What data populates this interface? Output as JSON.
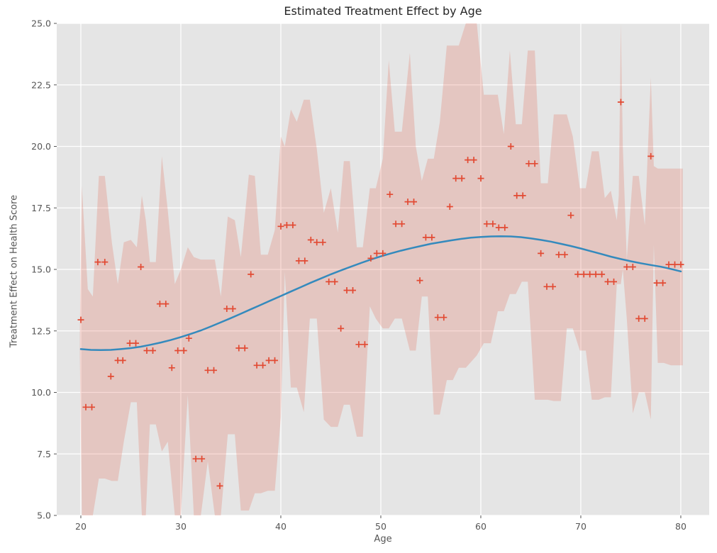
{
  "figure": {
    "background": "#ffffff",
    "plot_background": "#e5e5e5",
    "gridline_color": "#ffffff",
    "tick_color": "#555555",
    "title_color": "#262626"
  },
  "chart_data": {
    "type": "scatter",
    "title": "Estimated Treatment Effect by Age",
    "xlabel": "Age",
    "ylabel": "Treatment Effect on Health Score",
    "xlim": [
      17.59,
      82.84
    ],
    "ylim": [
      5.0,
      25.0
    ],
    "x_ticks": [
      "20",
      "30",
      "40",
      "50",
      "60",
      "70",
      "80"
    ],
    "x_tick_values": [
      20,
      30,
      40,
      50,
      60,
      70,
      80
    ],
    "y_ticks": [
      "5.0",
      "7.5",
      "10.0",
      "12.5",
      "15.0",
      "17.5",
      "20.0",
      "22.5",
      "25.0"
    ],
    "y_tick_values": [
      5.0,
      7.5,
      10.0,
      12.5,
      15.0,
      17.5,
      20.0,
      22.5,
      25.0
    ],
    "grid": true,
    "legend": false,
    "series": [
      {
        "name": "observed-treatment-effects",
        "type": "scatter",
        "marker": "plus",
        "color": "#E24A33",
        "points": [
          [
            20.0,
            12.95
          ],
          [
            20.5,
            9.4
          ],
          [
            21.1,
            9.4
          ],
          [
            21.7,
            15.3
          ],
          [
            22.4,
            15.3
          ],
          [
            23.0,
            10.65
          ],
          [
            23.7,
            11.3
          ],
          [
            24.2,
            11.3
          ],
          [
            24.9,
            12.0
          ],
          [
            25.5,
            12.0
          ],
          [
            26.0,
            15.1
          ],
          [
            26.6,
            11.7
          ],
          [
            27.2,
            11.7
          ],
          [
            27.9,
            13.6
          ],
          [
            28.5,
            13.6
          ],
          [
            29.1,
            11.0
          ],
          [
            29.7,
            11.7
          ],
          [
            30.3,
            11.7
          ],
          [
            30.8,
            12.2
          ],
          [
            31.5,
            7.3
          ],
          [
            32.1,
            7.3
          ],
          [
            32.7,
            10.9
          ],
          [
            33.3,
            10.9
          ],
          [
            33.9,
            6.2
          ],
          [
            34.6,
            13.4
          ],
          [
            35.2,
            13.4
          ],
          [
            35.8,
            11.8
          ],
          [
            36.4,
            11.8
          ],
          [
            37.0,
            14.8
          ],
          [
            37.6,
            11.1
          ],
          [
            38.2,
            11.1
          ],
          [
            38.8,
            11.3
          ],
          [
            39.4,
            11.3
          ],
          [
            40.0,
            16.75
          ],
          [
            40.6,
            16.8
          ],
          [
            41.2,
            16.8
          ],
          [
            41.8,
            15.35
          ],
          [
            42.4,
            15.35
          ],
          [
            43.0,
            16.2
          ],
          [
            43.6,
            16.1
          ],
          [
            44.2,
            16.1
          ],
          [
            44.8,
            14.5
          ],
          [
            45.4,
            14.5
          ],
          [
            46.0,
            12.6
          ],
          [
            46.6,
            14.15
          ],
          [
            47.2,
            14.15
          ],
          [
            47.8,
            11.95
          ],
          [
            48.4,
            11.95
          ],
          [
            49.0,
            15.45
          ],
          [
            49.6,
            15.65
          ],
          [
            50.2,
            15.65
          ],
          [
            50.9,
            18.05
          ],
          [
            51.5,
            16.85
          ],
          [
            52.1,
            16.85
          ],
          [
            52.7,
            17.75
          ],
          [
            53.3,
            17.75
          ],
          [
            53.9,
            14.55
          ],
          [
            54.5,
            16.3
          ],
          [
            55.1,
            16.3
          ],
          [
            55.7,
            13.05
          ],
          [
            56.3,
            13.05
          ],
          [
            56.9,
            17.55
          ],
          [
            57.5,
            18.7
          ],
          [
            58.1,
            18.7
          ],
          [
            58.7,
            19.45
          ],
          [
            59.3,
            19.45
          ],
          [
            60.0,
            18.7
          ],
          [
            60.6,
            16.85
          ],
          [
            61.2,
            16.85
          ],
          [
            61.8,
            16.7
          ],
          [
            62.4,
            16.7
          ],
          [
            63.0,
            20.0
          ],
          [
            63.6,
            18.0
          ],
          [
            64.2,
            18.0
          ],
          [
            64.8,
            19.3
          ],
          [
            65.4,
            19.3
          ],
          [
            66.0,
            15.65
          ],
          [
            66.6,
            14.3
          ],
          [
            67.2,
            14.3
          ],
          [
            67.8,
            15.6
          ],
          [
            68.4,
            15.6
          ],
          [
            69.0,
            17.2
          ],
          [
            69.7,
            14.8
          ],
          [
            70.3,
            14.8
          ],
          [
            70.9,
            14.8
          ],
          [
            71.5,
            14.8
          ],
          [
            72.1,
            14.8
          ],
          [
            72.7,
            14.5
          ],
          [
            73.3,
            14.5
          ],
          [
            74.0,
            21.8
          ],
          [
            74.6,
            15.1
          ],
          [
            75.2,
            15.1
          ],
          [
            75.8,
            13.0
          ],
          [
            76.4,
            13.0
          ],
          [
            77.0,
            19.6
          ],
          [
            77.6,
            14.45
          ],
          [
            78.2,
            14.45
          ],
          [
            78.8,
            15.2
          ],
          [
            79.4,
            15.2
          ],
          [
            80.0,
            15.2
          ]
        ]
      },
      {
        "name": "smoothed-trend",
        "type": "line",
        "color": "#348ABD",
        "width": 2.5,
        "points": [
          [
            20,
            11.76
          ],
          [
            21,
            11.73
          ],
          [
            22,
            11.72
          ],
          [
            23,
            11.73
          ],
          [
            24,
            11.76
          ],
          [
            25,
            11.8
          ],
          [
            26,
            11.86
          ],
          [
            27,
            11.94
          ],
          [
            28,
            12.03
          ],
          [
            29,
            12.13
          ],
          [
            30,
            12.25
          ],
          [
            31,
            12.38
          ],
          [
            32,
            12.52
          ],
          [
            33,
            12.68
          ],
          [
            34,
            12.85
          ],
          [
            35,
            13.02
          ],
          [
            36,
            13.2
          ],
          [
            37,
            13.38
          ],
          [
            38,
            13.56
          ],
          [
            39,
            13.74
          ],
          [
            40,
            13.92
          ],
          [
            41,
            14.1
          ],
          [
            42,
            14.28
          ],
          [
            43,
            14.46
          ],
          [
            44,
            14.63
          ],
          [
            45,
            14.8
          ],
          [
            46,
            14.96
          ],
          [
            47,
            15.11
          ],
          [
            48,
            15.26
          ],
          [
            49,
            15.4
          ],
          [
            50,
            15.53
          ],
          [
            51,
            15.65
          ],
          [
            52,
            15.76
          ],
          [
            53,
            15.86
          ],
          [
            54,
            15.95
          ],
          [
            55,
            16.04
          ],
          [
            56,
            16.11
          ],
          [
            57,
            16.18
          ],
          [
            58,
            16.24
          ],
          [
            59,
            16.29
          ],
          [
            60,
            16.32
          ],
          [
            61,
            16.34
          ],
          [
            62,
            16.35
          ],
          [
            63,
            16.34
          ],
          [
            64,
            16.31
          ],
          [
            65,
            16.26
          ],
          [
            66,
            16.2
          ],
          [
            67,
            16.13
          ],
          [
            68,
            16.04
          ],
          [
            69,
            15.95
          ],
          [
            70,
            15.85
          ],
          [
            71,
            15.74
          ],
          [
            72,
            15.63
          ],
          [
            73,
            15.52
          ],
          [
            74,
            15.42
          ],
          [
            75,
            15.33
          ],
          [
            76,
            15.25
          ],
          [
            77,
            15.18
          ],
          [
            78,
            15.11
          ],
          [
            79,
            15.02
          ],
          [
            80,
            14.92
          ]
        ]
      },
      {
        "name": "confidence-band",
        "type": "band",
        "color": "#E24A33",
        "opacity": 0.2,
        "points": [
          [
            19.9,
            11.5,
            12.5
          ],
          [
            20.1,
            4.8,
            18.4
          ],
          [
            20.7,
            4.8,
            14.2
          ],
          [
            21.2,
            4.8,
            13.9
          ],
          [
            21.8,
            6.5,
            18.8
          ],
          [
            22.4,
            6.5,
            18.8
          ],
          [
            23.1,
            6.4,
            16.1
          ],
          [
            23.7,
            6.4,
            14.4
          ],
          [
            24.3,
            8.0,
            16.1
          ],
          [
            25.0,
            9.6,
            16.2
          ],
          [
            25.6,
            9.6,
            15.9
          ],
          [
            26.1,
            5.0,
            18.0
          ],
          [
            26.5,
            4.8,
            17.0
          ],
          [
            26.9,
            8.7,
            15.3
          ],
          [
            27.5,
            8.7,
            15.3
          ],
          [
            28.1,
            7.6,
            19.6
          ],
          [
            28.7,
            8.0,
            17.4
          ],
          [
            29.4,
            4.8,
            14.4
          ],
          [
            30.0,
            4.8,
            15.0
          ],
          [
            30.7,
            9.9,
            15.9
          ],
          [
            31.3,
            4.8,
            15.5
          ],
          [
            32.0,
            4.8,
            15.4
          ],
          [
            32.7,
            7.2,
            15.4
          ],
          [
            33.4,
            4.8,
            15.4
          ],
          [
            34.0,
            5.0,
            13.9
          ],
          [
            34.7,
            8.3,
            17.15
          ],
          [
            35.4,
            8.3,
            17.0
          ],
          [
            36.0,
            5.2,
            15.5
          ],
          [
            36.8,
            5.2,
            18.85
          ],
          [
            37.4,
            5.9,
            18.8
          ],
          [
            38.0,
            5.9,
            15.6
          ],
          [
            38.7,
            6.0,
            15.6
          ],
          [
            39.4,
            6.0,
            16.6
          ],
          [
            40.0,
            9.0,
            20.4
          ],
          [
            40.4,
            14.9,
            20.0
          ],
          [
            41.0,
            10.2,
            21.5
          ],
          [
            41.6,
            10.2,
            21.0
          ],
          [
            42.3,
            9.2,
            21.9
          ],
          [
            42.9,
            13.0,
            21.9
          ],
          [
            43.6,
            13.0,
            19.9
          ],
          [
            44.3,
            8.9,
            17.3
          ],
          [
            45.0,
            8.6,
            18.3
          ],
          [
            45.7,
            8.6,
            16.5
          ],
          [
            46.3,
            9.5,
            19.4
          ],
          [
            46.9,
            9.5,
            19.4
          ],
          [
            47.6,
            8.2,
            15.9
          ],
          [
            48.2,
            8.2,
            15.9
          ],
          [
            48.9,
            13.5,
            18.3
          ],
          [
            49.5,
            13.0,
            18.3
          ],
          [
            50.2,
            12.6,
            19.5
          ],
          [
            50.8,
            12.6,
            23.5
          ],
          [
            51.4,
            13.0,
            20.6
          ],
          [
            52.1,
            13.0,
            20.6
          ],
          [
            52.9,
            11.7,
            23.8
          ],
          [
            53.5,
            11.7,
            20.0
          ],
          [
            54.1,
            13.9,
            18.6
          ],
          [
            54.7,
            13.9,
            19.5
          ],
          [
            55.3,
            9.1,
            19.5
          ],
          [
            55.9,
            9.1,
            21.0
          ],
          [
            56.6,
            10.5,
            24.1
          ],
          [
            57.2,
            10.5,
            24.1
          ],
          [
            57.8,
            11.0,
            24.1
          ],
          [
            58.5,
            11.0,
            25.3
          ],
          [
            59.6,
            11.5,
            25.3
          ],
          [
            60.3,
            12.0,
            22.1
          ],
          [
            61.0,
            12.0,
            22.1
          ],
          [
            61.7,
            13.3,
            22.1
          ],
          [
            62.3,
            13.3,
            20.5
          ],
          [
            62.9,
            14.0,
            23.9
          ],
          [
            63.5,
            14.0,
            20.9
          ],
          [
            64.1,
            14.5,
            20.9
          ],
          [
            64.7,
            14.5,
            23.9
          ],
          [
            65.4,
            9.7,
            23.9
          ],
          [
            66.0,
            9.7,
            18.5
          ],
          [
            66.7,
            9.7,
            18.5
          ],
          [
            67.3,
            9.65,
            21.3
          ],
          [
            68.0,
            9.65,
            21.3
          ],
          [
            68.6,
            12.6,
            21.3
          ],
          [
            69.2,
            12.6,
            20.4
          ],
          [
            69.9,
            11.7,
            18.3
          ],
          [
            70.5,
            11.7,
            18.3
          ],
          [
            71.1,
            9.7,
            19.8
          ],
          [
            71.8,
            9.7,
            19.8
          ],
          [
            72.4,
            9.8,
            17.9
          ],
          [
            73.0,
            9.8,
            18.2
          ],
          [
            73.6,
            14.4,
            17.0
          ],
          [
            73.8,
            14.4,
            18.0
          ],
          [
            74.0,
            14.4,
            25.3
          ],
          [
            74.2,
            15.0,
            20.0
          ],
          [
            74.6,
            13.0,
            15.4
          ],
          [
            75.2,
            9.15,
            18.8
          ],
          [
            75.8,
            10.0,
            18.8
          ],
          [
            76.4,
            10.0,
            16.8
          ],
          [
            77.0,
            8.9,
            22.8
          ],
          [
            77.3,
            16.0,
            19.2
          ],
          [
            77.7,
            11.2,
            19.1
          ],
          [
            78.3,
            11.2,
            19.1
          ],
          [
            79.0,
            11.1,
            19.1
          ],
          [
            79.6,
            11.1,
            19.1
          ],
          [
            80.2,
            11.1,
            19.1
          ]
        ]
      }
    ]
  }
}
